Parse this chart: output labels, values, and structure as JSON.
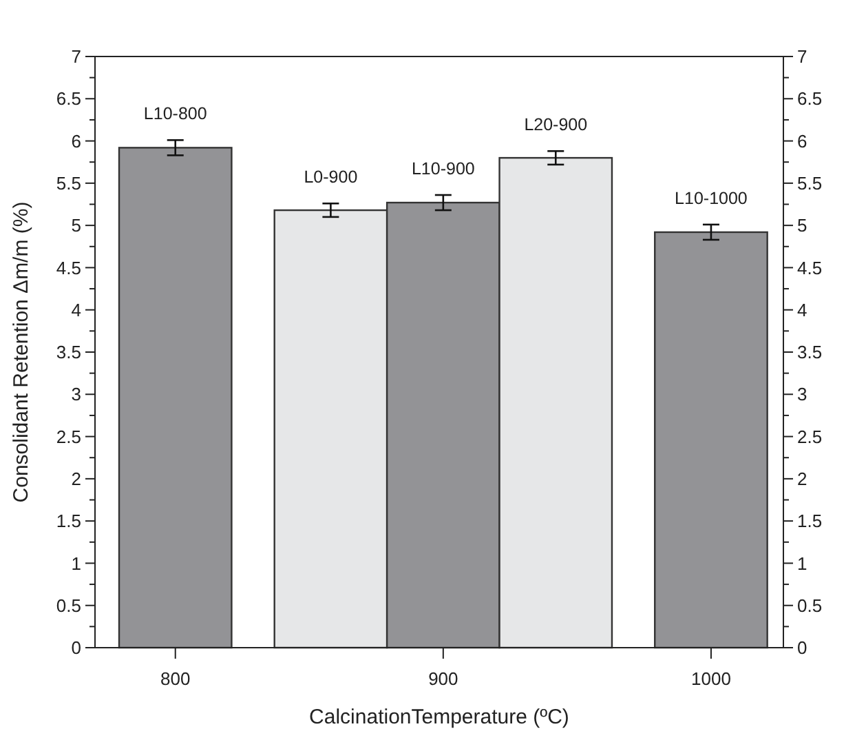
{
  "chart_data": {
    "type": "bar",
    "xlabel": "CalcinationTemperature (ºC)",
    "ylabel": "Consolidant Retention Δm/m (%)",
    "x": [
      800,
      858,
      900,
      942,
      1000
    ],
    "values": [
      5.92,
      5.18,
      5.27,
      5.8,
      4.92
    ],
    "errors": [
      0.09,
      0.08,
      0.09,
      0.08,
      0.09
    ],
    "colors": [
      "#939396",
      "#e6e7e8",
      "#939396",
      "#e6e7e8",
      "#939396"
    ],
    "xlim": [
      770,
      1027
    ],
    "xticks": [
      800,
      900,
      1000
    ],
    "ylim": [
      0,
      7
    ],
    "yticks": [
      0,
      {
        "value": 0.25,
        "label": null
      },
      0.5,
      {
        "value": 0.75,
        "label": null
      },
      1,
      {
        "value": 1.25,
        "label": null
      },
      1.5,
      {
        "value": 1.75,
        "label": null
      },
      2,
      {
        "value": 2.25,
        "label": null
      },
      2.5,
      {
        "value": 2.75,
        "label": null
      },
      3,
      {
        "value": 3.25,
        "label": null
      },
      3.5,
      {
        "value": 3.75,
        "label": null
      },
      4,
      {
        "value": 4.25,
        "label": null
      },
      4.5,
      {
        "value": 4.75,
        "label": null
      },
      5,
      {
        "value": 5.25,
        "label": null
      },
      5.5,
      {
        "value": 5.75,
        "label": null
      },
      6,
      {
        "value": 6.25,
        "label": null
      },
      6.5,
      {
        "value": 6.75,
        "label": null
      },
      7
    ],
    "y2lim": [
      0,
      7
    ],
    "y2ticks": [
      0,
      {
        "value": 0.25,
        "label": null
      },
      0.5,
      {
        "value": 0.75,
        "label": null
      },
      1,
      {
        "value": 1.25,
        "label": null
      },
      1.5,
      {
        "value": 1.75,
        "label": null
      },
      2,
      {
        "value": 2.25,
        "label": null
      },
      2.5,
      {
        "value": 2.75,
        "label": null
      },
      3,
      {
        "value": 3.25,
        "label": null
      },
      3.5,
      {
        "value": 3.75,
        "label": null
      },
      4,
      {
        "value": 4.25,
        "label": null
      },
      4.5,
      {
        "value": 4.75,
        "label": null
      },
      5,
      {
        "value": 5.25,
        "label": null
      },
      5.5,
      {
        "value": 5.75,
        "label": null
      },
      6,
      {
        "value": 6.25,
        "label": null
      },
      6.5,
      {
        "value": 6.75,
        "label": null
      },
      7
    ],
    "annotations": [
      {
        "text": "L10-800",
        "x": 800,
        "y": 5.92
      },
      {
        "text": "L0-900",
        "x": 858,
        "y": 5.18
      },
      {
        "text": "L10-900",
        "x": 900,
        "y": 5.27
      },
      {
        "text": "L20-900",
        "x": 942,
        "y": 5.8
      },
      {
        "text": "L10-1000",
        "x": 1000,
        "y": 4.92
      }
    ],
    "grid": false
  }
}
